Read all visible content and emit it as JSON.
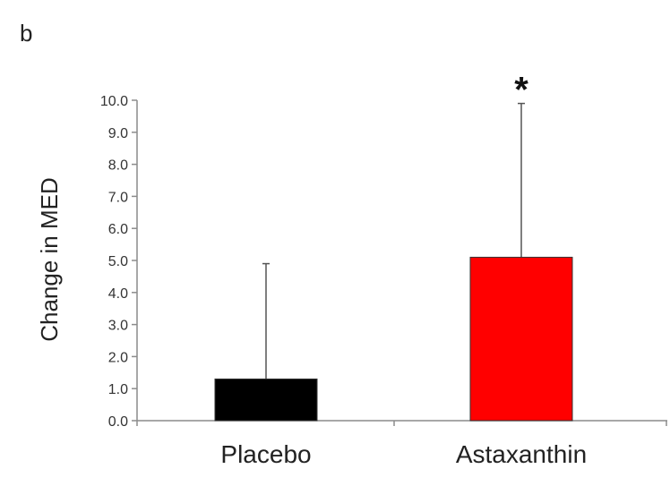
{
  "panel_label": "b",
  "chart_data": {
    "type": "bar",
    "title": "",
    "xlabel": "",
    "ylabel": "Change in MED",
    "ylim": [
      0,
      10
    ],
    "yticks": [
      "0.0",
      "1.0",
      "2.0",
      "3.0",
      "4.0",
      "5.0",
      "6.0",
      "7.0",
      "8.0",
      "9.0",
      "10.0"
    ],
    "categories": [
      "Placebo",
      "Astaxanthin"
    ],
    "values": [
      1.3,
      5.1
    ],
    "error_upper": [
      4.9,
      9.9
    ],
    "colors": [
      "#000000",
      "#ff0000"
    ],
    "annotations": [
      "",
      "*"
    ],
    "grid": false,
    "legend": "none"
  }
}
